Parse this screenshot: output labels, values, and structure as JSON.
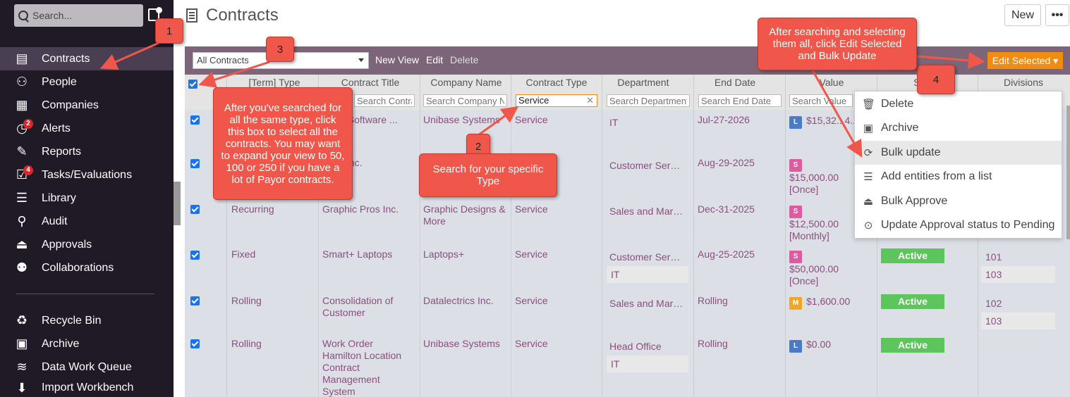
{
  "sidebar": {
    "search_placeholder": "Search...",
    "items": [
      {
        "label": "Contracts",
        "icon": "contract-icon"
      },
      {
        "label": "People",
        "icon": "person-icon"
      },
      {
        "label": "Companies",
        "icon": "building-icon"
      },
      {
        "label": "Alerts",
        "icon": "clock-icon",
        "badge": "2"
      },
      {
        "label": "Reports",
        "icon": "report-icon"
      },
      {
        "label": "Tasks/Evaluations",
        "icon": "tasks-icon",
        "badge": "4"
      },
      {
        "label": "Library",
        "icon": "library-icon"
      },
      {
        "label": "Audit",
        "icon": "audit-icon"
      },
      {
        "label": "Approvals",
        "icon": "stamp-icon"
      },
      {
        "label": "Collaborations",
        "icon": "group-icon"
      },
      {
        "label": "Recycle Bin",
        "icon": "recycle-icon"
      },
      {
        "label": "Archive",
        "icon": "archive-icon"
      },
      {
        "label": "Data Work Queue",
        "icon": "layers-icon"
      },
      {
        "label": "Import Workbench",
        "icon": "import-icon"
      }
    ]
  },
  "header": {
    "title": "Contracts",
    "new_label": "New",
    "more_label": "•••"
  },
  "toolbar": {
    "view_value": "All Contracts",
    "new_view": "New View",
    "edit": "Edit",
    "delete": "Delete",
    "edit_selected": "Edit Selected ▾"
  },
  "table": {
    "headers": [
      "[Term] Type",
      "Contract Title",
      "Company Name",
      "Contract Type",
      "Department",
      "End Date",
      "Value",
      "Status",
      "Divisions"
    ],
    "filters": {
      "title": "Search Contract Title",
      "company": "Search Company Name",
      "contract_type": "Service",
      "department": "Search Department",
      "end_date": "Search End Date",
      "value": "Search Value"
    },
    "rows": [
      {
        "term": "",
        "title": "... e - Software ... ment",
        "company": "Unibase Systems",
        "ctype": "Service",
        "dept": "IT",
        "end": "Jul-27-2026",
        "badge": "L",
        "value": "$15,32...4..."
      },
      {
        "term": "",
        "title": "...SP Inc.",
        "company": "",
        "ctype": "",
        "dept": "Customer Ser…",
        "end": "Aug-29-2025",
        "badge": "S",
        "value": "$15,000.00",
        "freq": "[Once]"
      },
      {
        "term": "Recurring",
        "title": "Graphic Pros Inc.",
        "company": "Graphic Designs & More",
        "ctype": "Service",
        "dept": "Sales and Mar…",
        "end": "Dec-31-2025",
        "badge": "S",
        "value": "$12,500.00",
        "freq": "[Monthly]"
      },
      {
        "term": "Fixed",
        "title": "Smart+ Laptops",
        "company": "Laptops+",
        "ctype": "Service",
        "dept": "Customer Ser…",
        "dept2": "IT",
        "end": "Aug-25-2025",
        "badge": "S",
        "value": "$50,000.00",
        "freq": "[Once]",
        "status": "Active",
        "div1": "101",
        "div2": "103"
      },
      {
        "term": "Rolling",
        "title": "Consolidation of Customer",
        "company": "Datalectrics Inc.",
        "ctype": "Service",
        "dept": "Sales and Mar…",
        "end": "Rolling",
        "badge": "M",
        "value": "$1,600.00",
        "status": "Active",
        "div1": "102",
        "div2": "103"
      },
      {
        "term": "Rolling",
        "title": "Work Order Hamilton Location Contract Management System",
        "company": "Unibase Systems",
        "ctype": "Service",
        "dept": "Head Office",
        "dept2": "IT",
        "end": "Rolling",
        "badge": "L",
        "value": "$0.00",
        "status": "Active"
      }
    ]
  },
  "menu": {
    "items": [
      "Delete",
      "Archive",
      "Bulk update",
      "Add entities from a list",
      "Bulk Approve",
      "Update Approval status to Pending"
    ]
  },
  "callouts": {
    "n1": "1",
    "n2": "2",
    "n3": "3",
    "n4": "4",
    "c2": "Search for your specific Type",
    "c3": "After you've searched for all the same type, click this box to select all the contracts. You may want to expand your view to 50, 100 or 250 if you have a lot of Payor contracts.",
    "c4": "After searching and selecting them all, click Edit Selected and Bulk Update"
  }
}
